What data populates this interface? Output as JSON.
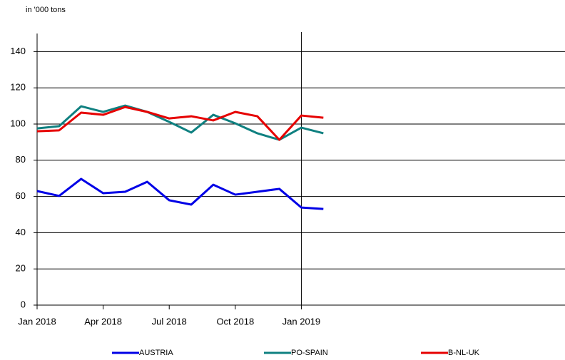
{
  "chart_data": {
    "type": "line",
    "subtitle": "in '000 tons",
    "x": [
      "2018-01",
      "2018-02",
      "2018-03",
      "2018-04",
      "2018-05",
      "2018-06",
      "2018-07",
      "2018-08",
      "2018-09",
      "2018-10",
      "2018-11",
      "2018-12",
      "2019-01",
      "2019-02"
    ],
    "xlim": [
      "2018-01",
      "2019-12"
    ],
    "xticks": [
      {
        "value": "2018-01",
        "label": "Jan 2018"
      },
      {
        "value": "2018-04",
        "label": "Apr 2018"
      },
      {
        "value": "2018-07",
        "label": "Jul 2018"
      },
      {
        "value": "2018-10",
        "label": "Oct 2018"
      },
      {
        "value": "2019-01",
        "label": "Jan 2019"
      }
    ],
    "vline": "2019-01",
    "ylim": [
      0,
      150
    ],
    "yticks": [
      0,
      20,
      40,
      60,
      80,
      100,
      120,
      140
    ],
    "grid": true,
    "series": [
      {
        "name": "AUSTRIA",
        "color": "#0000e6",
        "values": [
          63,
          60.3,
          69.7,
          61.8,
          62.6,
          68.1,
          57.9,
          55.5,
          66.5,
          61,
          62.6,
          64.2,
          53.9,
          53.1
        ]
      },
      {
        "name": "PO-SPAIN",
        "color": "#0f8080",
        "values": [
          97.6,
          98.8,
          109.8,
          106.7,
          110.2,
          106.7,
          101.2,
          95.3,
          105.1,
          100.4,
          94.9,
          91.3,
          98,
          94.9
        ]
      },
      {
        "name": "B-NL-UK",
        "color": "#e60000",
        "values": [
          96,
          96.5,
          106.3,
          105.1,
          109.4,
          106.7,
          103.1,
          104.3,
          102,
          106.7,
          104.3,
          91.3,
          104.7,
          103.5
        ]
      }
    ]
  }
}
